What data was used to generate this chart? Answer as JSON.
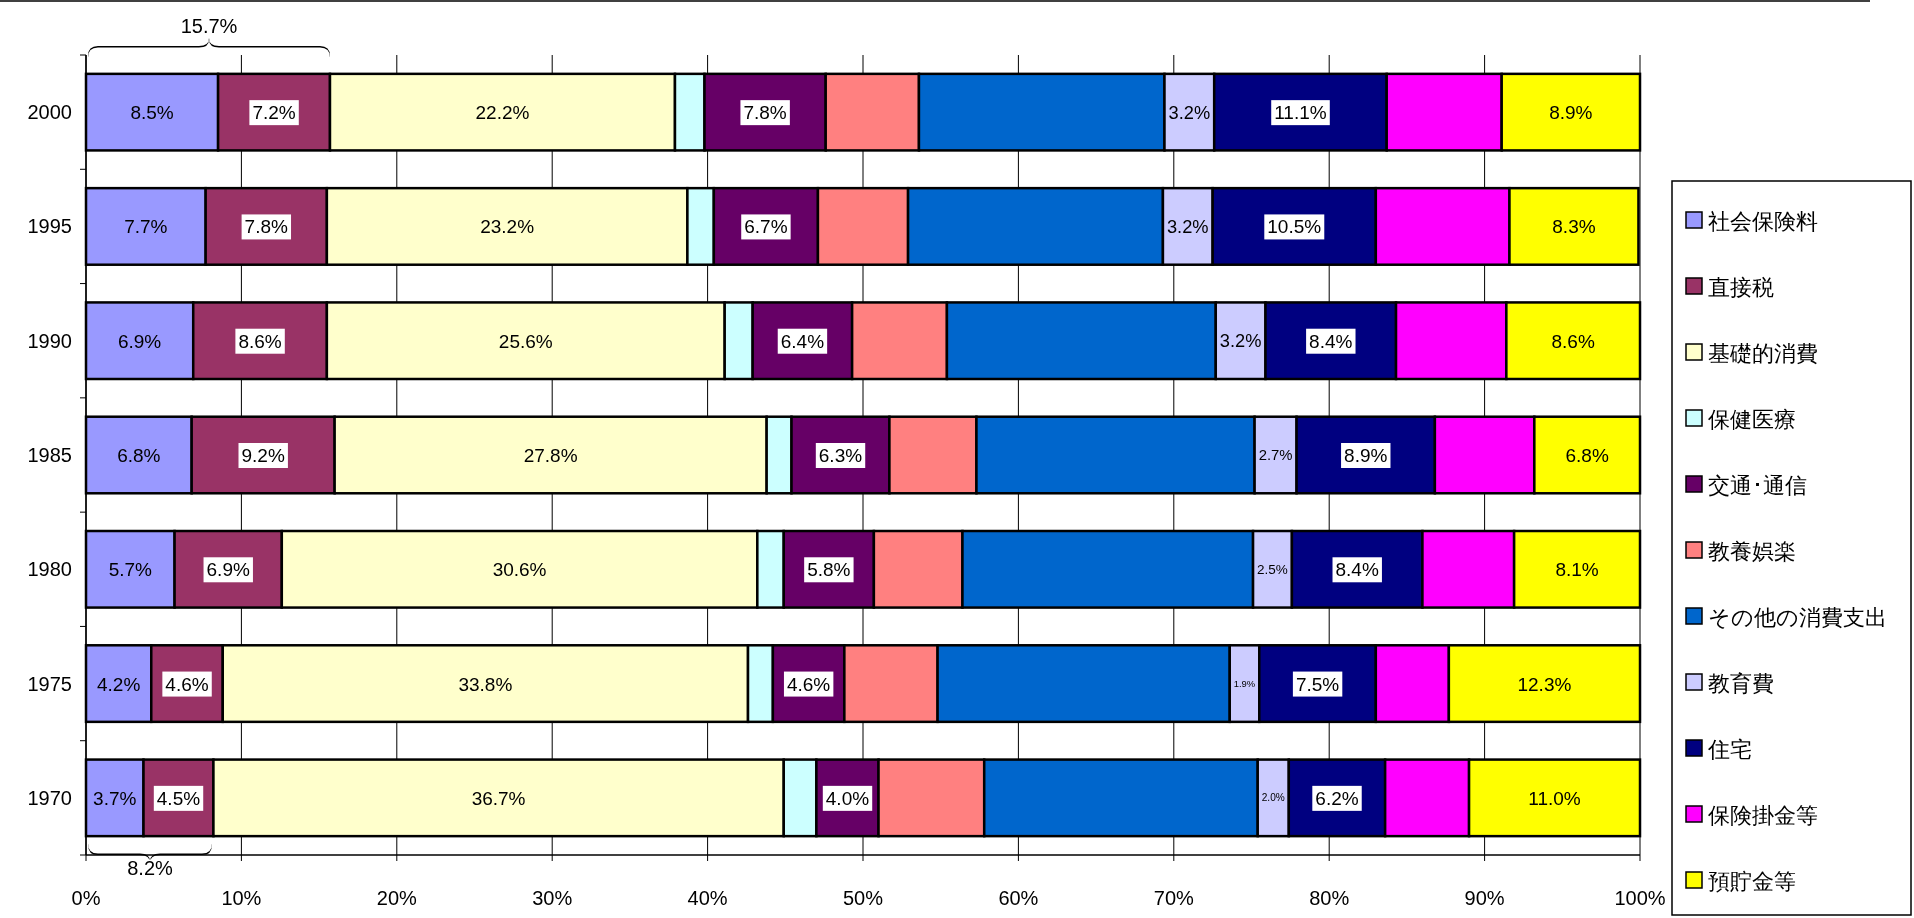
{
  "chart_data": {
    "type": "bar",
    "orientation": "horizontal",
    "stacked": true,
    "categories": [
      "2000",
      "1995",
      "1990",
      "1985",
      "1980",
      "1975",
      "1970"
    ],
    "xlim": [
      0,
      100
    ],
    "xticks": [
      {
        "value": 0,
        "label": "0%"
      },
      {
        "value": 10,
        "label": "10%"
      },
      {
        "value": 20,
        "label": "20%"
      },
      {
        "value": 30,
        "label": "30%"
      },
      {
        "value": 40,
        "label": "40%"
      },
      {
        "value": 50,
        "label": "50%"
      },
      {
        "value": 60,
        "label": "60%"
      },
      {
        "value": 70,
        "label": "70%"
      },
      {
        "value": 80,
        "label": "80%"
      },
      {
        "value": 90,
        "label": "90%"
      },
      {
        "value": 100,
        "label": "100%"
      }
    ],
    "grid": "x",
    "legend": "right",
    "series": [
      {
        "name": "社会保険料",
        "color": "#9999ff",
        "values": [
          8.5,
          7.7,
          6.9,
          6.8,
          5.7,
          4.2,
          3.7
        ],
        "value_labels": [
          "8.5%",
          "7.7%",
          "6.9%",
          "6.8%",
          "5.7%",
          "4.2%",
          "3.7%"
        ]
      },
      {
        "name": "直接税",
        "color": "#993366",
        "values": [
          7.2,
          7.8,
          8.6,
          9.2,
          6.9,
          4.6,
          4.5
        ],
        "value_labels": [
          "7.2%",
          "7.8%",
          "8.6%",
          "9.2%",
          "6.9%",
          "4.6%",
          "4.5%"
        ]
      },
      {
        "name": "基礎的消費",
        "color": "#ffffcc",
        "values": [
          22.2,
          23.2,
          25.6,
          27.8,
          30.6,
          33.8,
          36.7
        ],
        "value_labels": [
          "22.2%",
          "23.2%",
          "25.6%",
          "27.8%",
          "30.6%",
          "33.8%",
          "36.7%"
        ]
      },
      {
        "name": "保健医療",
        "color": "#ccffff",
        "values": [
          1.9,
          1.7,
          1.8,
          1.6,
          1.7,
          1.6,
          2.1
        ]
      },
      {
        "name": "交通･通信",
        "color": "#660066",
        "values": [
          7.8,
          6.7,
          6.4,
          6.3,
          5.8,
          4.6,
          4.0
        ],
        "value_labels": [
          "7.8%",
          "6.7%",
          "6.4%",
          "6.3%",
          "5.8%",
          "4.6%",
          "4.0%"
        ]
      },
      {
        "name": "教養娯楽",
        "color": "#ff8080",
        "values": [
          6.0,
          5.8,
          6.1,
          5.6,
          5.7,
          6.0,
          6.8
        ]
      },
      {
        "name": "その他の消費支出",
        "color": "#0066cc",
        "values": [
          15.8,
          16.4,
          17.3,
          17.9,
          18.7,
          18.8,
          17.6
        ]
      },
      {
        "name": "教育費",
        "color": "#ccccff",
        "values": [
          3.2,
          3.2,
          3.2,
          2.7,
          2.5,
          1.9,
          2.0
        ],
        "value_labels": [
          "3.2%",
          "3.2%",
          "3.2%",
          "2.7%",
          "2.5%",
          "1.9%",
          "2.0%"
        ]
      },
      {
        "name": "住宅",
        "color": "#000080",
        "values": [
          11.1,
          10.5,
          8.4,
          8.9,
          8.4,
          7.5,
          6.2
        ],
        "value_labels": [
          "11.1%",
          "10.5%",
          "8.4%",
          "8.9%",
          "8.4%",
          "7.5%",
          "6.2%"
        ]
      },
      {
        "name": "保険掛金等",
        "color": "#ff00ff",
        "values": [
          7.4,
          8.6,
          7.1,
          6.4,
          5.9,
          4.7,
          5.4
        ]
      },
      {
        "name": "預貯金等",
        "color": "#ffff00",
        "values": [
          8.9,
          8.3,
          8.6,
          6.8,
          8.1,
          12.3,
          11.0
        ],
        "value_labels": [
          "8.9%",
          "8.3%",
          "8.6%",
          "6.8%",
          "8.1%",
          "12.3%",
          "11.0%"
        ]
      }
    ],
    "annotations": [
      "15.7%",
      "8.2%"
    ]
  }
}
